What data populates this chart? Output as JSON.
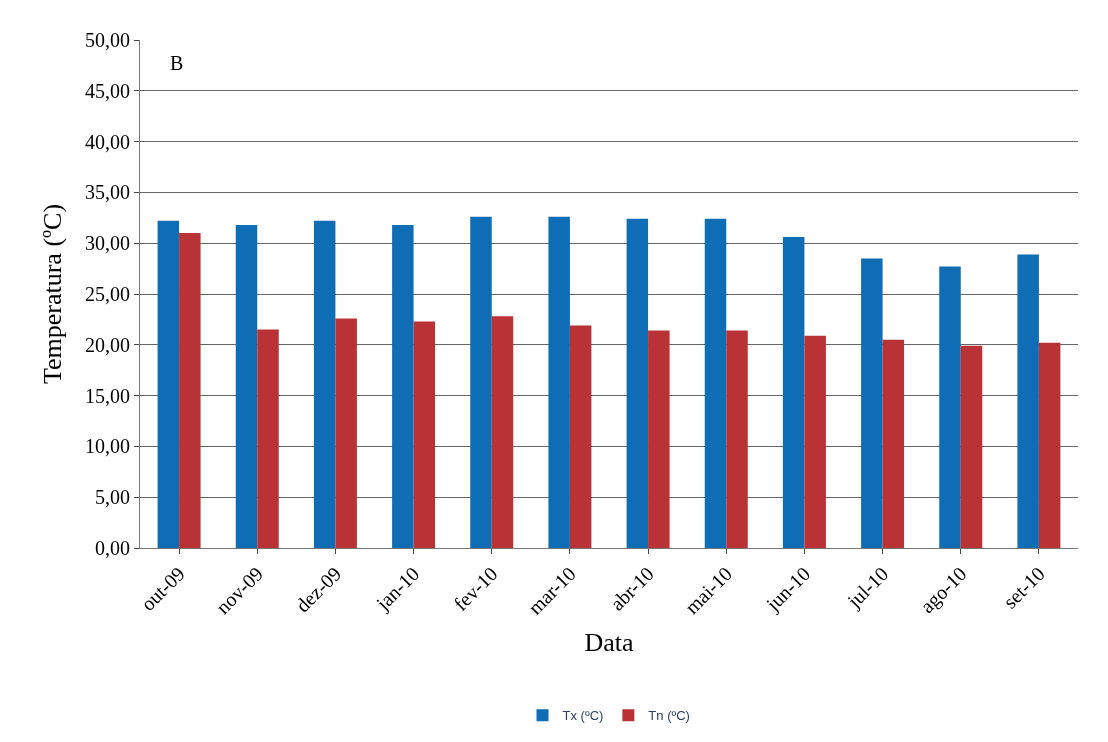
{
  "chart_data": {
    "type": "bar",
    "xlabel": "Data",
    "ylabel": "Temperatura (ºC)",
    "annotations": [
      "B"
    ],
    "categories": [
      "out-09",
      "nov-09",
      "dez-09",
      "jan-10",
      "fev-10",
      "mar-10",
      "abr-10",
      "mai-10",
      "jun-10",
      "jul-10",
      "ago-10",
      "set-10"
    ],
    "series": [
      {
        "name": "Tx (ºC)",
        "color": "#0f6db5",
        "values": [
          32.2,
          31.8,
          32.2,
          31.8,
          32.6,
          32.6,
          32.4,
          32.4,
          30.6,
          28.5,
          27.7,
          28.9
        ]
      },
      {
        "name": "Tn (ºC)",
        "color": "#b83236",
        "values": [
          31.0,
          21.5,
          22.6,
          22.3,
          22.8,
          21.9,
          21.4,
          21.4,
          20.9,
          20.5,
          19.9,
          20.2
        ]
      }
    ],
    "ylim": [
      0,
      50
    ],
    "yticks": [
      {
        "value": 0,
        "label": "0,00"
      },
      {
        "value": 5,
        "label": "5,00"
      },
      {
        "value": 10,
        "label": "10,00"
      },
      {
        "value": 15,
        "label": "15,00"
      },
      {
        "value": 20,
        "label": "20,00"
      },
      {
        "value": 25,
        "label": "25,00"
      },
      {
        "value": 30,
        "label": "30,00"
      },
      {
        "value": 35,
        "label": "35,00"
      },
      {
        "value": 40,
        "label": "40,00"
      },
      {
        "value": 45,
        "label": "45,00"
      },
      {
        "value": 50,
        "label": "50,00"
      }
    ],
    "grid": "y",
    "legend": "bottom"
  }
}
